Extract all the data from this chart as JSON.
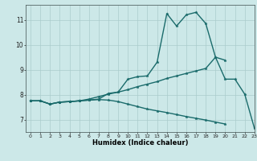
{
  "title": "",
  "xlabel": "Humidex (Indice chaleur)",
  "bg_color": "#cce8e8",
  "line_color": "#1a6b6b",
  "grid_color": "#aacccc",
  "xlim": [
    -0.5,
    23
  ],
  "ylim": [
    6.5,
    11.6
  ],
  "xticks": [
    0,
    1,
    2,
    3,
    4,
    5,
    6,
    7,
    8,
    9,
    10,
    11,
    12,
    13,
    14,
    15,
    16,
    17,
    18,
    19,
    20,
    21,
    22,
    23
  ],
  "yticks": [
    7,
    8,
    9,
    10,
    11
  ],
  "line1_x": [
    0,
    1,
    2,
    3,
    4,
    5,
    6,
    7,
    8,
    9,
    10,
    11,
    12,
    13,
    14,
    15,
    16,
    17,
    18,
    19,
    20,
    21,
    22,
    23
  ],
  "line1_y": [
    7.75,
    7.75,
    7.62,
    7.7,
    7.72,
    7.75,
    7.78,
    7.82,
    8.05,
    8.1,
    8.62,
    8.72,
    8.75,
    9.3,
    11.25,
    10.75,
    11.2,
    11.3,
    10.85,
    9.5,
    8.62,
    8.62,
    8.02,
    6.65
  ],
  "line2_x": [
    0,
    1,
    2,
    3,
    4,
    5,
    6,
    7,
    8,
    9,
    10,
    11,
    12,
    13,
    14,
    15,
    16,
    17,
    18,
    19,
    20
  ],
  "line2_y": [
    7.75,
    7.75,
    7.62,
    7.7,
    7.72,
    7.75,
    7.82,
    7.92,
    8.02,
    8.1,
    8.2,
    8.32,
    8.42,
    8.52,
    8.65,
    8.75,
    8.85,
    8.95,
    9.05,
    9.5,
    9.38
  ],
  "line3_x": [
    0,
    1,
    2,
    3,
    4,
    5,
    6,
    7,
    8,
    9,
    10,
    11,
    12,
    13,
    14,
    15,
    16,
    17,
    18,
    19,
    20
  ],
  "line3_y": [
    7.75,
    7.75,
    7.62,
    7.7,
    7.72,
    7.75,
    7.78,
    7.8,
    7.78,
    7.72,
    7.62,
    7.52,
    7.42,
    7.35,
    7.28,
    7.2,
    7.12,
    7.05,
    6.98,
    6.9,
    6.82
  ],
  "marker_size": 2.5,
  "line_width": 1.0
}
